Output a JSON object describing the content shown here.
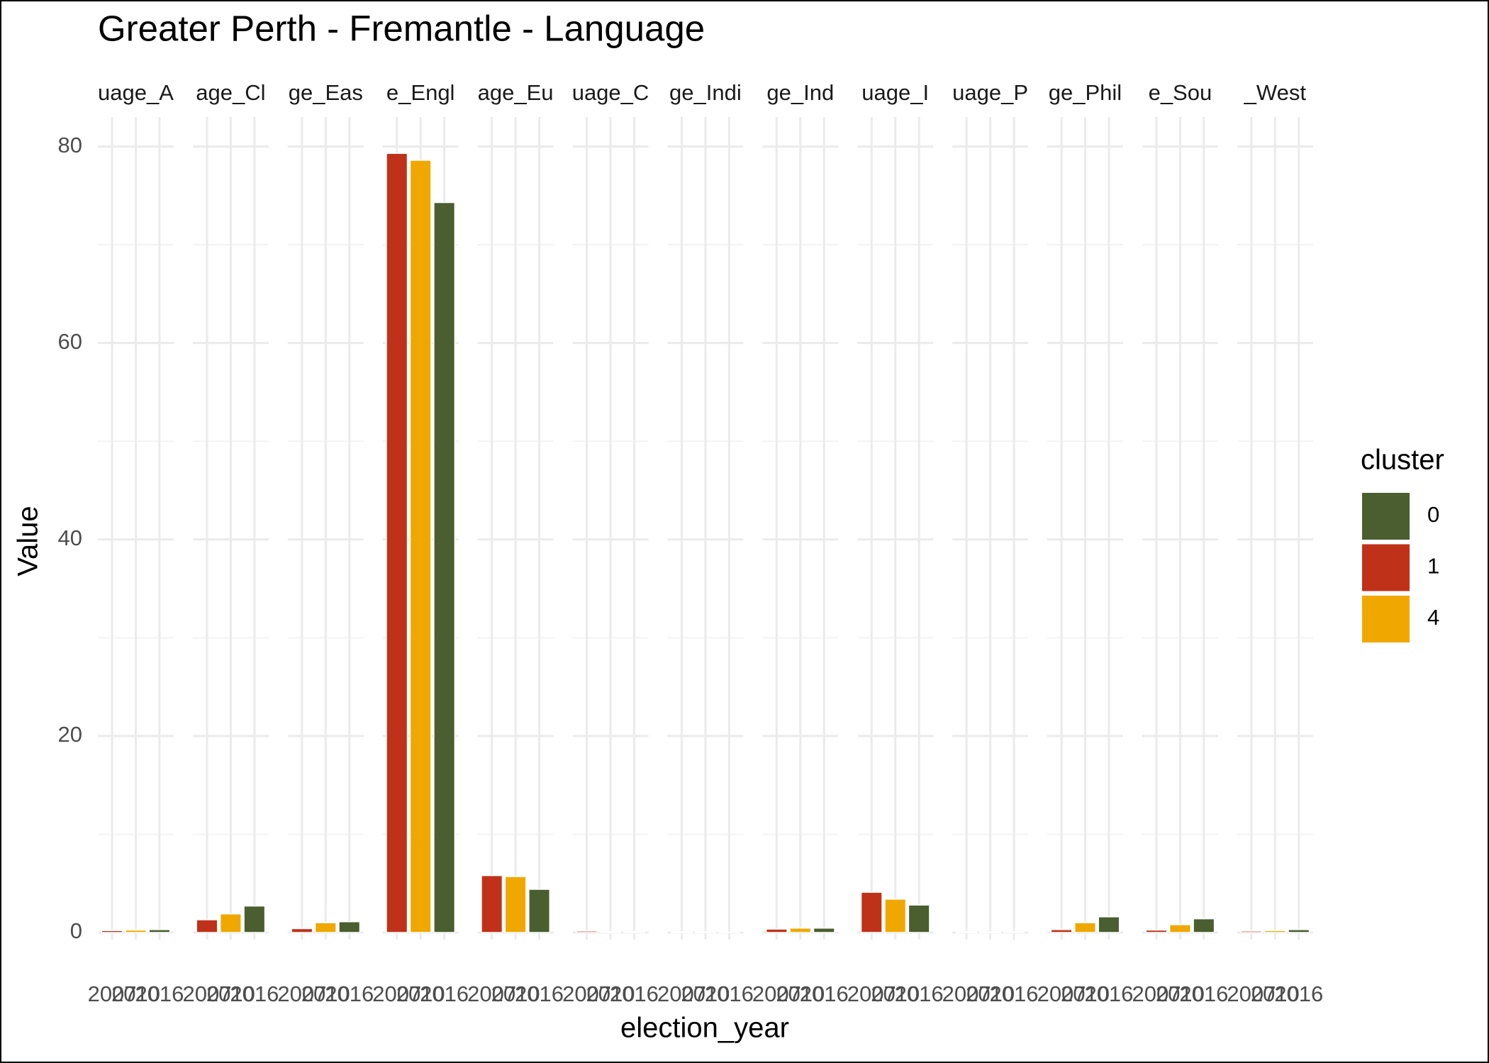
{
  "chart_data": {
    "type": "bar",
    "title": "Greater Perth - Fremantle - Language",
    "x_label": "election_year",
    "y_label": "Value",
    "legend_title": "cluster",
    "categories": [
      "2007",
      "2010",
      "2016"
    ],
    "facets": [
      "uage_A",
      "age_Cl",
      "ge_Eas",
      "e_Engl",
      "age_Eu",
      "uage_C",
      "ge_Indi",
      "ge_Ind",
      "uage_I",
      "uage_P",
      "ge_Phil",
      "e_Sou",
      "_West"
    ],
    "series": [
      {
        "name": "0",
        "color": "#4a5e2f",
        "values": [
          [
            null,
            null,
            0.3
          ],
          [
            null,
            null,
            2.7
          ],
          [
            null,
            null,
            1.1
          ],
          [
            null,
            null,
            74.3
          ],
          [
            null,
            null,
            4.4
          ],
          [
            null,
            null,
            0.1
          ],
          [
            null,
            null,
            0.05
          ],
          [
            null,
            null,
            0.45
          ],
          [
            null,
            null,
            2.8
          ],
          [
            null,
            null,
            0.08
          ],
          [
            null,
            null,
            1.6
          ],
          [
            null,
            null,
            1.4
          ],
          [
            null,
            null,
            0.3
          ]
        ]
      },
      {
        "name": "1",
        "color": "#c0311a",
        "values": [
          [
            0.2,
            null,
            null
          ],
          [
            1.3,
            null,
            null
          ],
          [
            0.4,
            null,
            null
          ],
          [
            79.3,
            null,
            null
          ],
          [
            5.8,
            null,
            null
          ],
          [
            0.15,
            null,
            null
          ],
          [
            0.05,
            null,
            null
          ],
          [
            0.35,
            null,
            null
          ],
          [
            4.1,
            null,
            null
          ],
          [
            0.05,
            null,
            null
          ],
          [
            0.3,
            null,
            null
          ],
          [
            0.25,
            null,
            null
          ],
          [
            0.15,
            null,
            null
          ]
        ]
      },
      {
        "name": "4",
        "color": "#f0a800",
        "values": [
          [
            null,
            0.25,
            null
          ],
          [
            null,
            1.9,
            null
          ],
          [
            null,
            1.0,
            null
          ],
          [
            null,
            78.6,
            null
          ],
          [
            null,
            5.7,
            null
          ],
          [
            null,
            0.1,
            null
          ],
          [
            null,
            0.05,
            null
          ],
          [
            null,
            0.45,
            null
          ],
          [
            null,
            3.4,
            null
          ],
          [
            null,
            0.05,
            null
          ],
          [
            null,
            1.0,
            null
          ],
          [
            null,
            0.8,
            null
          ],
          [
            null,
            0.2,
            null
          ]
        ]
      }
    ],
    "ylim": [
      0,
      83
    ],
    "yticks": [
      0,
      20,
      40,
      60,
      80
    ],
    "grid": true
  }
}
